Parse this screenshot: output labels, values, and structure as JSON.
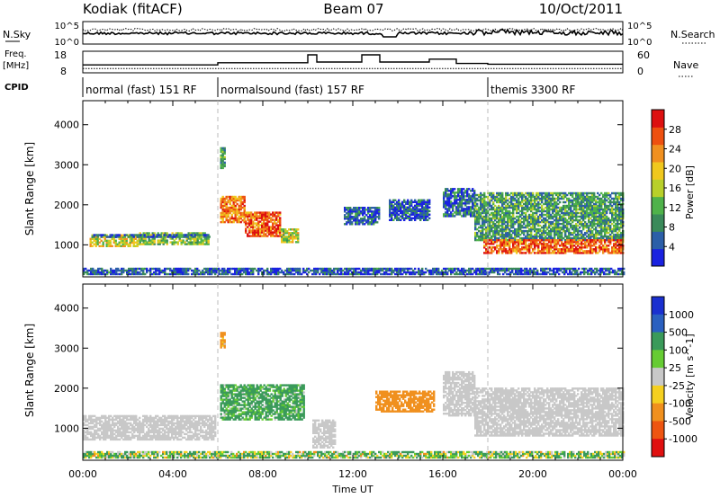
{
  "header": {
    "station": "Kodiak (fitACF)",
    "beam": "Beam 07",
    "date": "10/Oct/2011"
  },
  "colors": {
    "power_scale": [
      "#1a22e0",
      "#2c5fa8",
      "#3a8a5a",
      "#4fb24a",
      "#b8d02a",
      "#f0c81e",
      "#f09020",
      "#ee5010",
      "#dd1010"
    ],
    "velocity_scale": [
      "#1a30d0",
      "#2a60c0",
      "#3a9a5a",
      "#66cc33",
      "#c8c8c8",
      "#f5d020",
      "#f0901e",
      "#ee5511",
      "#e01010"
    ],
    "ground_scatter": "#c8c8c8"
  },
  "noise_panel": {
    "left_label": "N.Sky",
    "right_label": "N.Search",
    "left_ticks": [
      "10^5",
      "10^0"
    ],
    "right_ticks": [
      "10^5",
      "10^0"
    ]
  },
  "freq_panel": {
    "left_label_1": "Freq.",
    "left_label_2": "[MHz]",
    "left_ticks": [
      "18",
      "8"
    ],
    "right_ticks": [
      "60",
      "0"
    ],
    "right_label": "Nave",
    "freq_mhz": 10,
    "nave_steps": [
      {
        "t0": 0.0,
        "t1": 6.0,
        "v": 22
      },
      {
        "t0": 6.0,
        "t1": 10.0,
        "v": 28
      },
      {
        "t0": 10.0,
        "t1": 10.4,
        "v": 50
      },
      {
        "t0": 10.4,
        "t1": 12.4,
        "v": 30
      },
      {
        "t0": 12.4,
        "t1": 13.2,
        "v": 50
      },
      {
        "t0": 13.2,
        "t1": 15.4,
        "v": 30
      },
      {
        "t0": 15.4,
        "t1": 16.6,
        "v": 38
      },
      {
        "t0": 16.6,
        "t1": 18.0,
        "v": 26
      },
      {
        "t0": 18.0,
        "t1": 24.0,
        "v": 24
      }
    ]
  },
  "cpid": {
    "label": "CPID",
    "segments": [
      {
        "t0": 0,
        "t1": 6,
        "label": "normal (fast) 151 RF"
      },
      {
        "t0": 6,
        "t1": 18,
        "label": "normalsound (fast) 157 RF"
      },
      {
        "t0": 18,
        "t1": 24,
        "label": "themis 3300 RF"
      }
    ]
  },
  "chart_data": [
    {
      "type": "heatmap",
      "ylabel": "Slant Range [km]",
      "xlabel": "",
      "xlim": [
        0,
        24
      ],
      "ylim": [
        200,
        4600
      ],
      "yticks": [
        1000,
        2000,
        3000,
        4000
      ],
      "colorbar_label": "Power [dB]",
      "colorbar_ticks": [
        4,
        8,
        12,
        16,
        20,
        24,
        28
      ],
      "zlim": [
        0,
        32
      ],
      "regions": [
        {
          "t0": 0.3,
          "t1": 2.5,
          "r0": 950,
          "r1": 1250,
          "z": 18
        },
        {
          "t0": 2.5,
          "t1": 5.6,
          "r0": 1000,
          "r1": 1280,
          "z": 14
        },
        {
          "t0": 0.3,
          "t1": 5.6,
          "r0": 1180,
          "r1": 1260,
          "z": 6
        },
        {
          "t0": 6.1,
          "t1": 7.2,
          "r0": 1550,
          "r1": 2200,
          "z": 24
        },
        {
          "t0": 7.2,
          "t1": 8.8,
          "r0": 1200,
          "r1": 1800,
          "z": 26
        },
        {
          "t0": 8.8,
          "t1": 9.6,
          "r0": 1050,
          "r1": 1400,
          "z": 16
        },
        {
          "t0": 6.1,
          "t1": 6.3,
          "r0": 2900,
          "r1": 3400,
          "z": 12
        },
        {
          "t0": 11.6,
          "t1": 13.2,
          "r0": 1500,
          "r1": 1950,
          "z": 6
        },
        {
          "t0": 13.6,
          "t1": 15.4,
          "r0": 1600,
          "r1": 2100,
          "z": 5
        },
        {
          "t0": 16.0,
          "t1": 17.4,
          "r0": 1700,
          "r1": 2400,
          "z": 6
        },
        {
          "t0": 17.4,
          "t1": 24.0,
          "r0": 1100,
          "r1": 2300,
          "z": 10
        },
        {
          "t0": 17.8,
          "t1": 24.0,
          "r0": 780,
          "r1": 1100,
          "z": 26
        },
        {
          "t0": 0.0,
          "t1": 24.0,
          "r0": 250,
          "r1": 400,
          "z": 5
        }
      ]
    },
    {
      "type": "heatmap",
      "ylabel": "Slant Range [km]",
      "xlabel": "Time UT",
      "xlim": [
        0,
        24
      ],
      "ylim": [
        200,
        4600
      ],
      "yticks": [
        1000,
        2000,
        3000,
        4000
      ],
      "xticks": [
        "00:00",
        "04:00",
        "08:00",
        "12:00",
        "16:00",
        "20:00",
        "00:00"
      ],
      "colorbar_label": "Velocity [m s^-1]",
      "colorbar_ticks": [
        1000,
        500,
        100,
        25,
        -25,
        -100,
        -500,
        -1000
      ],
      "regions": [
        {
          "t0": 0.0,
          "t1": 5.9,
          "r0": 700,
          "r1": 1300,
          "v": 0
        },
        {
          "t0": 6.1,
          "t1": 9.8,
          "r0": 1200,
          "r1": 2100,
          "v": 200
        },
        {
          "t0": 6.1,
          "t1": 6.3,
          "r0": 3000,
          "r1": 3400,
          "v": -200
        },
        {
          "t0": 10.2,
          "t1": 11.2,
          "r0": 500,
          "r1": 1200,
          "v": 0
        },
        {
          "t0": 13.0,
          "t1": 15.6,
          "r0": 1400,
          "r1": 1900,
          "v": -300
        },
        {
          "t0": 16.0,
          "t1": 17.4,
          "r0": 1300,
          "r1": 2400,
          "v": 0
        },
        {
          "t0": 17.4,
          "t1": 24.0,
          "r0": 800,
          "r1": 2000,
          "v": 0
        },
        {
          "t0": 0.0,
          "t1": 24.0,
          "r0": 250,
          "r1": 400,
          "v": 80
        }
      ]
    }
  ]
}
